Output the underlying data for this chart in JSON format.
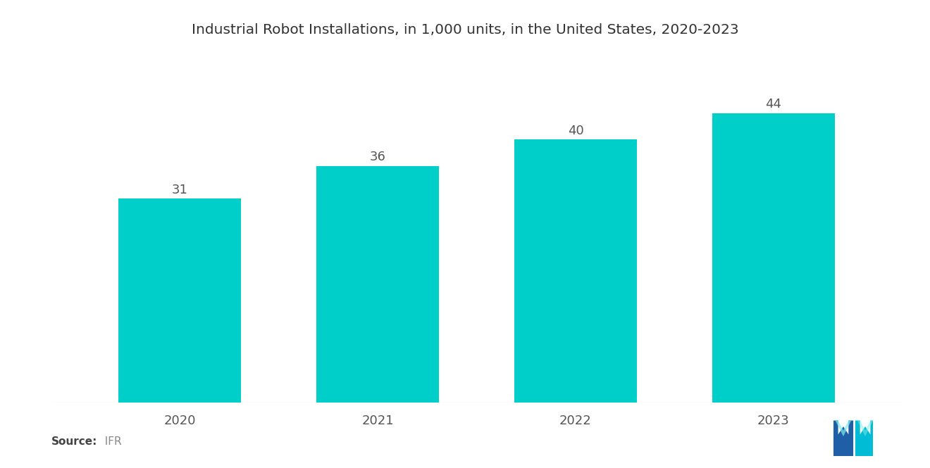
{
  "title": "Industrial Robot Installations, in 1,000 units, in the United States, 2020-2023",
  "categories": [
    "2020",
    "2021",
    "2022",
    "2023"
  ],
  "values": [
    31,
    36,
    40,
    44
  ],
  "bar_color": "#00CEC9",
  "background_color": "#ffffff",
  "title_fontsize": 14.5,
  "label_fontsize": 13,
  "value_fontsize": 13,
  "source_label": "Source:",
  "source_value": "  IFR",
  "ylim": [
    0,
    52
  ],
  "bar_width": 0.62,
  "logo_blue": "#1e5fa8",
  "logo_teal": "#00BCD4"
}
